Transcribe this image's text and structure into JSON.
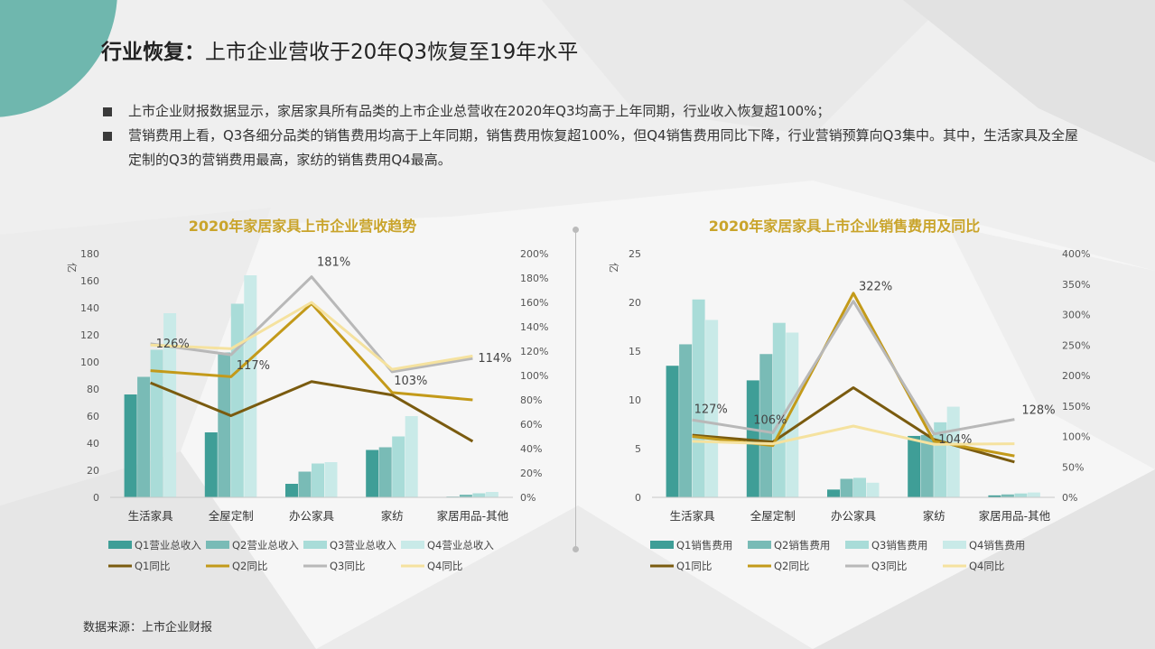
{
  "page": {
    "title_bold": "行业恢复：",
    "title_rest": "上市企业营收于20年Q3恢复至19年水平",
    "bullets": [
      "上市企业财报数据显示，家居家具所有品类的上市企业总营收在2020年Q3均高于上年同期，行业收入恢复超100%；",
      "营销费用上看，Q3各细分品类的销售费用均高于上年同期，销售费用恢复超100%，但Q4销售费用同比下降，行业营销预算向Q3集中。其中，生活家具及全屋定制的Q3的营销费用最高，家纺的销售费用Q4最高。"
    ],
    "source": "数据来源：上市企业财报"
  },
  "colors": {
    "q1_bar": "#3f9e97",
    "q2_bar": "#79bbb6",
    "q3_bar": "#a9dcd8",
    "q4_bar": "#c9eae8",
    "q1_line": "#7a5b0f",
    "q2_line": "#c39a1a",
    "q3_line": "#b8b8b8",
    "q4_line": "#f5e29f",
    "chart_title": "#c9a42b",
    "accent_circle": "#6fb7ae"
  },
  "chart_data": [
    {
      "type": "bar",
      "title": "2020年家居家具上市企业营收趋势",
      "y_unit": "亿",
      "categories": [
        "生活家具",
        "全屋定制",
        "办公家具",
        "家纺",
        "家居用品-其他"
      ],
      "ylim": [
        0,
        180
      ],
      "y_ticks": [
        "0",
        "20",
        "40",
        "60",
        "80",
        "100",
        "120",
        "140",
        "160",
        "180"
      ],
      "y2lim": [
        0,
        200
      ],
      "y2_ticks": [
        "0%",
        "20%",
        "40%",
        "60%",
        "80%",
        "100%",
        "120%",
        "140%",
        "160%",
        "180%",
        "200%"
      ],
      "series": [
        {
          "name": "Q1营业总收入",
          "kind": "bar",
          "values": [
            76,
            48,
            10,
            35,
            0.5
          ]
        },
        {
          "name": "Q2营业总收入",
          "kind": "bar",
          "values": [
            89,
            107,
            19,
            37,
            2
          ]
        },
        {
          "name": "Q3营业总收入",
          "kind": "bar",
          "values": [
            109,
            143,
            25,
            45,
            3
          ]
        },
        {
          "name": "Q4营业总收入",
          "kind": "bar",
          "values": [
            136,
            164,
            26,
            60,
            4
          ]
        },
        {
          "name": "Q1同比",
          "kind": "line",
          "values": [
            94,
            67,
            95,
            84,
            46
          ]
        },
        {
          "name": "Q2同比",
          "kind": "line",
          "values": [
            104,
            99,
            159,
            86,
            80
          ]
        },
        {
          "name": "Q3同比",
          "kind": "line",
          "values": [
            126,
            117,
            181,
            103,
            114
          ]
        },
        {
          "name": "Q4同比",
          "kind": "line",
          "values": [
            125,
            122,
            160,
            105,
            116
          ]
        }
      ],
      "data_labels": [
        "126%",
        "117%",
        "181%",
        "103%",
        "114%"
      ]
    },
    {
      "type": "bar",
      "title": "2020年家居家具上市企业销售费用及同比",
      "y_unit": "亿",
      "categories": [
        "生活家具",
        "全屋定制",
        "办公家具",
        "家纺",
        "家居用品-其他"
      ],
      "ylim": [
        0,
        25
      ],
      "y_ticks": [
        "0",
        "5",
        "10",
        "15",
        "20",
        "25"
      ],
      "y2lim": [
        0,
        400
      ],
      "y2_ticks": [
        "0%",
        "50%",
        "100%",
        "150%",
        "200%",
        "250%",
        "300%",
        "350%",
        "400%"
      ],
      "series": [
        {
          "name": "Q1销售费用",
          "kind": "bar",
          "values": [
            13.5,
            12,
            0.8,
            6.3,
            0.2
          ]
        },
        {
          "name": "Q2销售费用",
          "kind": "bar",
          "values": [
            15.7,
            14.7,
            1.9,
            6.4,
            0.3
          ]
        },
        {
          "name": "Q3销售费用",
          "kind": "bar",
          "values": [
            20.3,
            17.9,
            2,
            7.7,
            0.4
          ]
        },
        {
          "name": "Q4销售费用",
          "kind": "bar",
          "values": [
            18.2,
            16.9,
            1.5,
            9.3,
            0.5
          ]
        },
        {
          "name": "Q1同比",
          "kind": "line",
          "values": [
            102,
            91,
            180,
            95,
            58
          ]
        },
        {
          "name": "Q2同比",
          "kind": "line",
          "values": [
            100,
            85,
            335,
            92,
            68
          ]
        },
        {
          "name": "Q3同比",
          "kind": "line",
          "values": [
            127,
            106,
            322,
            104,
            128
          ]
        },
        {
          "name": "Q4同比",
          "kind": "line",
          "values": [
            92,
            88,
            117,
            87,
            88
          ]
        }
      ],
      "data_labels": [
        "127%",
        "106%",
        "322%",
        "104%",
        "128%"
      ]
    }
  ]
}
